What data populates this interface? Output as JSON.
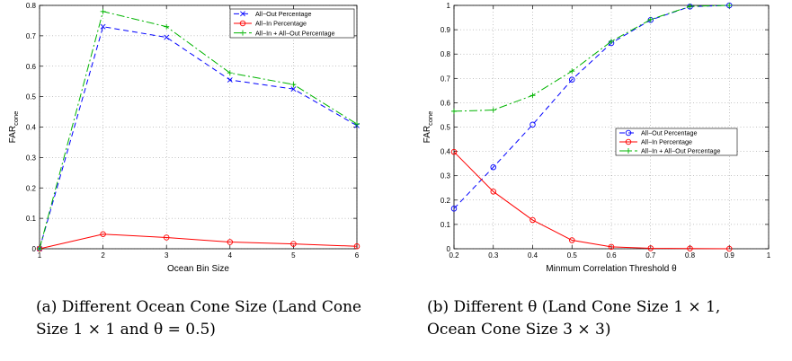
{
  "chart_data": [
    {
      "type": "line",
      "title": "",
      "xlabel": "Ocean Bin Size",
      "ylabel_main": "FAR",
      "ylabel_sub": "cone",
      "xlim": [
        1,
        6
      ],
      "ylim": [
        0,
        0.8
      ],
      "xticks": [
        1,
        2,
        3,
        4,
        5,
        6
      ],
      "yticks": [
        0,
        0.1,
        0.2,
        0.3,
        0.4,
        0.5,
        0.6,
        0.7,
        0.8
      ],
      "xtick_labels": [
        "1",
        "2",
        "3",
        "4",
        "5",
        "6"
      ],
      "ytick_labels": [
        "0",
        "0.1",
        "0.2",
        "0.3",
        "0.4",
        "0.5",
        "0.6",
        "0.7",
        "0.8"
      ],
      "grid": true,
      "legend_position": "top-right",
      "x": [
        1,
        2,
        3,
        4,
        5,
        6
      ],
      "series": [
        {
          "name": "All−Out Percentage",
          "color": "#0000ff",
          "marker": "x",
          "dash": "6,4",
          "values": [
            0.0,
            0.73,
            0.695,
            0.555,
            0.525,
            0.405
          ]
        },
        {
          "name": "All−In Percentage",
          "color": "#ff0000",
          "marker": "o",
          "dash": "",
          "values": [
            0.0,
            0.048,
            0.037,
            0.022,
            0.016,
            0.008
          ]
        },
        {
          "name": "All−In + All−Out Percentage",
          "color": "#00b400",
          "marker": "+",
          "dash": "9,3,2,3",
          "values": [
            0.0,
            0.78,
            0.73,
            0.578,
            0.54,
            0.41
          ]
        }
      ]
    },
    {
      "type": "line",
      "title": "",
      "xlabel": "Minmum Correlation Threshold θ",
      "ylabel_main": "FAR",
      "ylabel_sub": "cone",
      "xlim": [
        0.2,
        1.0
      ],
      "ylim": [
        0,
        1
      ],
      "xticks": [
        0.2,
        0.3,
        0.4,
        0.5,
        0.6,
        0.7,
        0.8,
        0.9,
        1.0
      ],
      "yticks": [
        0,
        0.1,
        0.2,
        0.3,
        0.4,
        0.5,
        0.6,
        0.7,
        0.8,
        0.9,
        1.0
      ],
      "xtick_labels": [
        "0.2",
        "0.3",
        "0.4",
        "0.5",
        "0.6",
        "0.7",
        "0.8",
        "0.9",
        "1"
      ],
      "ytick_labels": [
        "0",
        "0.1",
        "0.2",
        "0.3",
        "0.4",
        "0.5",
        "0.6",
        "0.7",
        "0.8",
        "0.9",
        "1"
      ],
      "grid": true,
      "legend_position": "center-right",
      "x": [
        0.2,
        0.3,
        0.4,
        0.5,
        0.6,
        0.7,
        0.8,
        0.9
      ],
      "series": [
        {
          "name": "All−Out Percentage",
          "color": "#0000ff",
          "marker": "o",
          "dash": "6,4",
          "values": [
            0.165,
            0.335,
            0.51,
            0.695,
            0.845,
            0.94,
            0.995,
            1.0
          ]
        },
        {
          "name": "All−In Percentage",
          "color": "#ff0000",
          "marker": "o",
          "dash": "",
          "values": [
            0.398,
            0.235,
            0.118,
            0.035,
            0.008,
            0.002,
            0.001,
            0.0
          ]
        },
        {
          "name": "All−In + All−Out Percentage",
          "color": "#00b400",
          "marker": "+",
          "dash": "9,3,2,3",
          "values": [
            0.565,
            0.57,
            0.63,
            0.73,
            0.852,
            0.942,
            0.996,
            1.0
          ]
        }
      ]
    }
  ],
  "captions": [
    "(a)  Different  Ocean  Cone  Size (Land Cone Size 1 × 1 and θ = 0.5)",
    "(b) Different θ (Land Cone Size 1 × 1, Ocean Cone Size 3 × 3)"
  ]
}
